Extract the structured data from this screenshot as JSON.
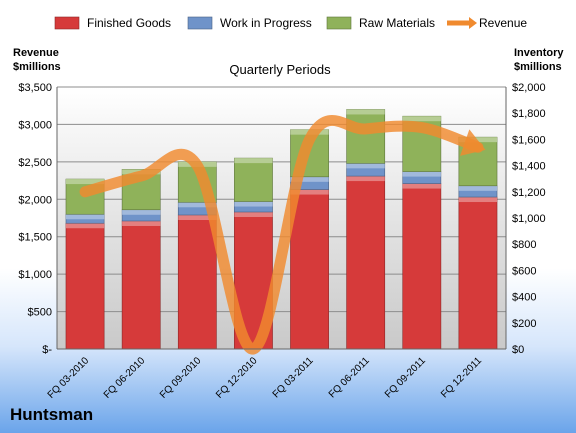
{
  "company": "Huntsman",
  "chart_data": {
    "type": "bar",
    "title": "Quarterly Periods",
    "left_axis_label_line1": "Revenue",
    "left_axis_label_line2": "$millions",
    "right_axis_label_line1": "Inventory",
    "right_axis_label_line2": "$millions",
    "categories": [
      "FQ 03-2010",
      "FQ 06-2010",
      "FQ 09-2010",
      "FQ 12-2010",
      "FQ 03-2011",
      "FQ 06-2011",
      "FQ 09-2011",
      "FQ 12-2011"
    ],
    "left_ticks": [
      "$-",
      "$500",
      "$1,000",
      "$1,500",
      "$2,000",
      "$2,500",
      "$3,000",
      "$3,500"
    ],
    "right_ticks": [
      "$0",
      "$200",
      "$400",
      "$600",
      "$800",
      "$1,000",
      "$1,200",
      "$1,400",
      "$1,600",
      "$1,800",
      "$2,000"
    ],
    "left_ylim": [
      0,
      3500
    ],
    "right_ylim": [
      0,
      2000
    ],
    "series": [
      {
        "name": "Finished Goods",
        "color": "#d63a3a",
        "axis": "left",
        "values": [
          1680,
          1710,
          1790,
          1830,
          2130,
          2310,
          2210,
          2030
        ]
      },
      {
        "name": "Work in Progress",
        "color": "#6f93c9",
        "axis": "left",
        "values": [
          120,
          150,
          170,
          140,
          170,
          170,
          160,
          150
        ]
      },
      {
        "name": "Raw Materials",
        "color": "#8fb25a",
        "axis": "left",
        "values": [
          470,
          540,
          540,
          580,
          630,
          720,
          740,
          650
        ]
      },
      {
        "name": "Revenue",
        "color": "#f08a2e",
        "axis": "right",
        "type": "line",
        "values": [
          1200,
          1320,
          1400,
          0,
          1600,
          1680,
          1690,
          1540
        ]
      }
    ],
    "legend_position": "top",
    "grid": true
  }
}
